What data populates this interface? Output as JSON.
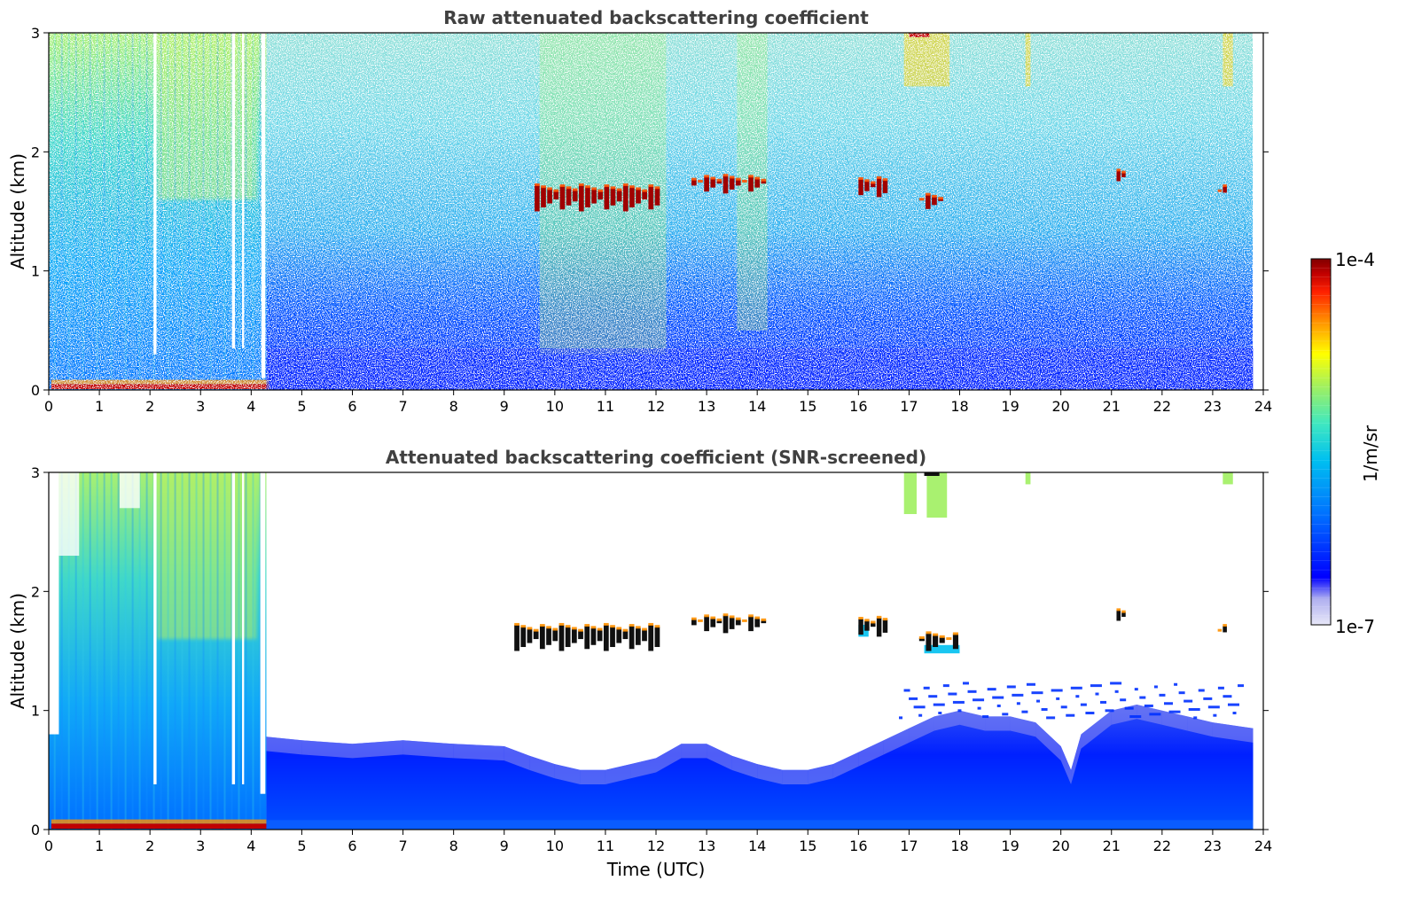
{
  "chart_data": [
    {
      "type": "heatmap",
      "title": "Raw attenuated backscattering coefficient",
      "xlabel": "",
      "ylabel": "Altitude (km)",
      "xlim": [
        0,
        24
      ],
      "ylim": [
        0,
        3
      ],
      "x_ticks": [
        "0",
        "1",
        "2",
        "3",
        "4",
        "5",
        "6",
        "7",
        "8",
        "9",
        "10",
        "11",
        "12",
        "13",
        "14",
        "15",
        "16",
        "17",
        "18",
        "19",
        "20",
        "21",
        "22",
        "23",
        "24"
      ],
      "y_ticks": [
        "0",
        "1",
        "2",
        "3"
      ],
      "data_end_time": 23.8,
      "cloud_layers": [
        {
          "start": 9.6,
          "end": 12.1,
          "base_km": 1.5,
          "top_km": 1.72
        },
        {
          "start": 12.7,
          "end": 14.2,
          "base_km": 1.65,
          "top_km": 1.8
        },
        {
          "start": 16.0,
          "end": 16.6,
          "base_km": 1.62,
          "top_km": 1.78
        },
        {
          "start": 17.2,
          "end": 17.7,
          "base_km": 1.52,
          "top_km": 1.64
        },
        {
          "start": 21.1,
          "end": 21.3,
          "base_km": 1.72,
          "top_km": 1.86
        },
        {
          "start": 23.1,
          "end": 23.3,
          "base_km": 1.64,
          "top_km": 1.72
        }
      ]
    },
    {
      "type": "heatmap",
      "title": "Attenuated backscattering coefficient (SNR-screened)",
      "xlabel": "Time (UTC)",
      "ylabel": "Altitude (km)",
      "xlim": [
        0,
        24
      ],
      "ylim": [
        0,
        3
      ],
      "x_ticks": [
        "0",
        "1",
        "2",
        "3",
        "4",
        "5",
        "6",
        "7",
        "8",
        "9",
        "10",
        "11",
        "12",
        "13",
        "14",
        "15",
        "16",
        "17",
        "18",
        "19",
        "20",
        "21",
        "22",
        "23",
        "24"
      ],
      "y_ticks": [
        "0",
        "1",
        "2",
        "3"
      ],
      "data_end_time": 23.8,
      "boundary_layer_top_km": [
        [
          4.3,
          0.78
        ],
        [
          5.0,
          0.75
        ],
        [
          6.0,
          0.72
        ],
        [
          7.0,
          0.75
        ],
        [
          8.0,
          0.72
        ],
        [
          9.0,
          0.7
        ],
        [
          9.5,
          0.62
        ],
        [
          10.0,
          0.55
        ],
        [
          10.5,
          0.5
        ],
        [
          11.0,
          0.5
        ],
        [
          11.5,
          0.55
        ],
        [
          12.0,
          0.6
        ],
        [
          12.5,
          0.72
        ],
        [
          13.0,
          0.72
        ],
        [
          13.5,
          0.62
        ],
        [
          14.0,
          0.55
        ],
        [
          14.5,
          0.5
        ],
        [
          15.0,
          0.5
        ],
        [
          15.5,
          0.55
        ],
        [
          16.0,
          0.65
        ],
        [
          16.5,
          0.75
        ],
        [
          17.0,
          0.85
        ],
        [
          17.5,
          0.95
        ],
        [
          18.0,
          1.0
        ],
        [
          18.5,
          0.95
        ],
        [
          19.0,
          0.95
        ],
        [
          19.5,
          0.9
        ],
        [
          20.0,
          0.7
        ],
        [
          20.2,
          0.5
        ],
        [
          20.4,
          0.8
        ],
        [
          21.0,
          1.0
        ],
        [
          21.5,
          1.05
        ],
        [
          22.0,
          1.0
        ],
        [
          22.5,
          0.95
        ],
        [
          23.0,
          0.9
        ],
        [
          23.8,
          0.85
        ]
      ],
      "cloud_layers": [
        {
          "start": 9.2,
          "end": 12.1,
          "base_km": 1.5,
          "top_km": 1.72
        },
        {
          "start": 12.7,
          "end": 14.2,
          "base_km": 1.65,
          "top_km": 1.8
        },
        {
          "start": 16.0,
          "end": 16.6,
          "base_km": 1.62,
          "top_km": 1.78
        },
        {
          "start": 17.2,
          "end": 18.0,
          "base_km": 1.5,
          "top_km": 1.65
        },
        {
          "start": 21.1,
          "end": 21.3,
          "base_km": 1.72,
          "top_km": 1.86
        },
        {
          "start": 23.1,
          "end": 23.3,
          "base_km": 1.64,
          "top_km": 1.72
        }
      ]
    }
  ],
  "colorbar": {
    "label": "1/m/sr",
    "max_label": "1e-4",
    "min_label": "1e-7",
    "scale": "log",
    "range": [
      1e-07,
      0.0001
    ],
    "colormap": [
      "#e8e8f8",
      "#b0b0f0",
      "#0000ff",
      "#0070ff",
      "#00c0f0",
      "#40e8c0",
      "#a0f060",
      "#ffff00",
      "#ff9000",
      "#ff2000",
      "#c00000",
      "#800000"
    ]
  }
}
